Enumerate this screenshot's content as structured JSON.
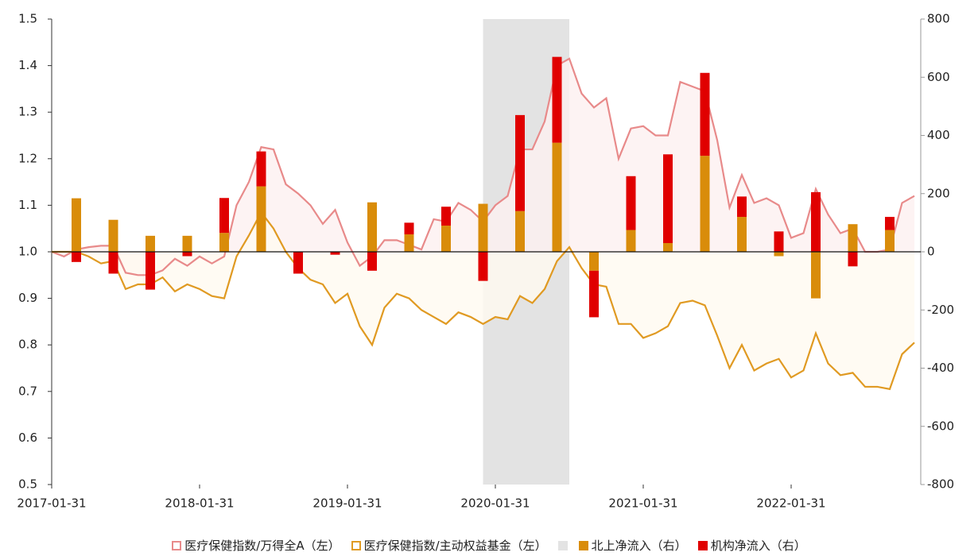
{
  "chart_data": {
    "type": "combo",
    "categories": [
      "2017-01-31",
      null,
      null,
      null,
      null,
      null,
      null,
      null,
      null,
      null,
      null,
      null,
      "2018-01-31",
      null,
      null,
      null,
      null,
      null,
      null,
      null,
      null,
      null,
      null,
      null,
      "2019-01-31",
      null,
      null,
      null,
      null,
      null,
      null,
      null,
      null,
      null,
      null,
      null,
      "2020-01-31",
      null,
      null,
      null,
      null,
      null,
      null,
      null,
      null,
      null,
      null,
      null,
      "2021-01-31",
      null,
      null,
      null,
      null,
      null,
      null,
      null,
      null,
      null,
      null,
      null,
      "2022-01-31",
      null,
      null,
      null,
      null,
      null,
      null,
      null,
      null,
      null,
      null
    ],
    "ylim": [
      0.5,
      1.5
    ],
    "yticks": [
      0.5,
      0.6,
      0.7,
      0.8,
      0.9,
      {
        "value": 1,
        "label": "1.0"
      },
      1.1,
      1.2,
      1.3,
      1.4,
      1.5
    ],
    "y2lim": [
      -800,
      800
    ],
    "y2ticks": [
      -800,
      -600,
      -400,
      -200,
      0,
      200,
      400,
      600,
      800
    ],
    "shade": {
      "color": "#e3e3e3",
      "range": [
        35,
        42
      ]
    },
    "series": [
      {
        "name": "医疗保健指数/万得全A（左）",
        "type": "line",
        "color": "#e88a8a",
        "fill": "#fdf0f0",
        "values": [
          1.0,
          0.99,
          1.005,
          1.01,
          1.013,
          1.013,
          0.955,
          0.95,
          0.95,
          0.96,
          0.985,
          0.97,
          0.99,
          0.975,
          0.99,
          1.1,
          1.15,
          1.225,
          1.22,
          1.145,
          1.125,
          1.1,
          1.06,
          1.09,
          1.02,
          0.97,
          0.99,
          1.025,
          1.025,
          1.015,
          1.005,
          1.07,
          1.065,
          1.105,
          1.09,
          1.065,
          1.1,
          1.12,
          1.22,
          1.22,
          1.28,
          1.4,
          1.415,
          1.34,
          1.31,
          1.33,
          1.2,
          1.265,
          1.27,
          1.25,
          1.25,
          1.365,
          1.355,
          1.345,
          1.24,
          1.095,
          1.165,
          1.105,
          1.115,
          1.1,
          1.03,
          1.04,
          1.135,
          1.08,
          1.04,
          1.05,
          1.0,
          1.0,
          1.005,
          1.105,
          1.12
        ]
      },
      {
        "name": "医疗保健指数/主动权益基金（左）",
        "type": "line",
        "color": "#e09a22",
        "fill": "#fffaf0",
        "values": [
          1.0,
          1.0,
          1.0,
          0.99,
          0.975,
          0.98,
          0.92,
          0.93,
          0.93,
          0.945,
          0.915,
          0.93,
          0.92,
          0.905,
          0.9,
          0.99,
          1.035,
          1.085,
          1.05,
          1.0,
          0.965,
          0.94,
          0.93,
          0.89,
          0.91,
          0.84,
          0.8,
          0.88,
          0.91,
          0.9,
          0.875,
          0.86,
          0.845,
          0.87,
          0.86,
          0.845,
          0.86,
          0.855,
          0.905,
          0.89,
          0.92,
          0.98,
          1.01,
          0.965,
          0.93,
          0.925,
          0.845,
          0.845,
          0.815,
          0.825,
          0.84,
          0.89,
          0.895,
          0.885,
          0.82,
          0.75,
          0.8,
          0.745,
          0.76,
          0.77,
          0.73,
          0.745,
          0.825,
          0.76,
          0.735,
          0.74,
          0.71,
          0.71,
          0.705,
          0.78,
          0.805
        ]
      },
      {
        "name": "北上净流入（右）",
        "type": "bar",
        "axis": "y2",
        "color": "#d98c0a",
        "values": [
          null,
          null,
          184,
          null,
          null,
          110,
          null,
          null,
          55,
          null,
          null,
          55,
          null,
          null,
          65,
          null,
          null,
          225,
          null,
          null,
          0,
          null,
          null,
          0,
          null,
          null,
          170,
          null,
          null,
          60,
          null,
          null,
          90,
          null,
          null,
          165,
          null,
          null,
          140,
          null,
          null,
          375,
          null,
          null,
          -65,
          null,
          null,
          75,
          null,
          null,
          30,
          null,
          null,
          330,
          null,
          null,
          120,
          null,
          null,
          -15,
          null,
          null,
          -160,
          null,
          null,
          95,
          null,
          null,
          75,
          null,
          null
        ]
      },
      {
        "name": "机构净流入（右）",
        "type": "bar",
        "axis": "y2",
        "color": "#e00000",
        "values": [
          null,
          null,
          -35,
          null,
          null,
          -75,
          null,
          null,
          -130,
          null,
          null,
          -15,
          null,
          null,
          120,
          null,
          null,
          120,
          null,
          null,
          -75,
          null,
          null,
          -10,
          null,
          null,
          -65,
          null,
          null,
          40,
          null,
          null,
          65,
          null,
          null,
          -100,
          null,
          null,
          330,
          null,
          null,
          295,
          null,
          null,
          -160,
          null,
          null,
          185,
          null,
          null,
          305,
          null,
          null,
          285,
          null,
          null,
          70,
          null,
          null,
          70,
          null,
          null,
          205,
          null,
          null,
          -50,
          null,
          null,
          45,
          null,
          null
        ]
      }
    ]
  }
}
